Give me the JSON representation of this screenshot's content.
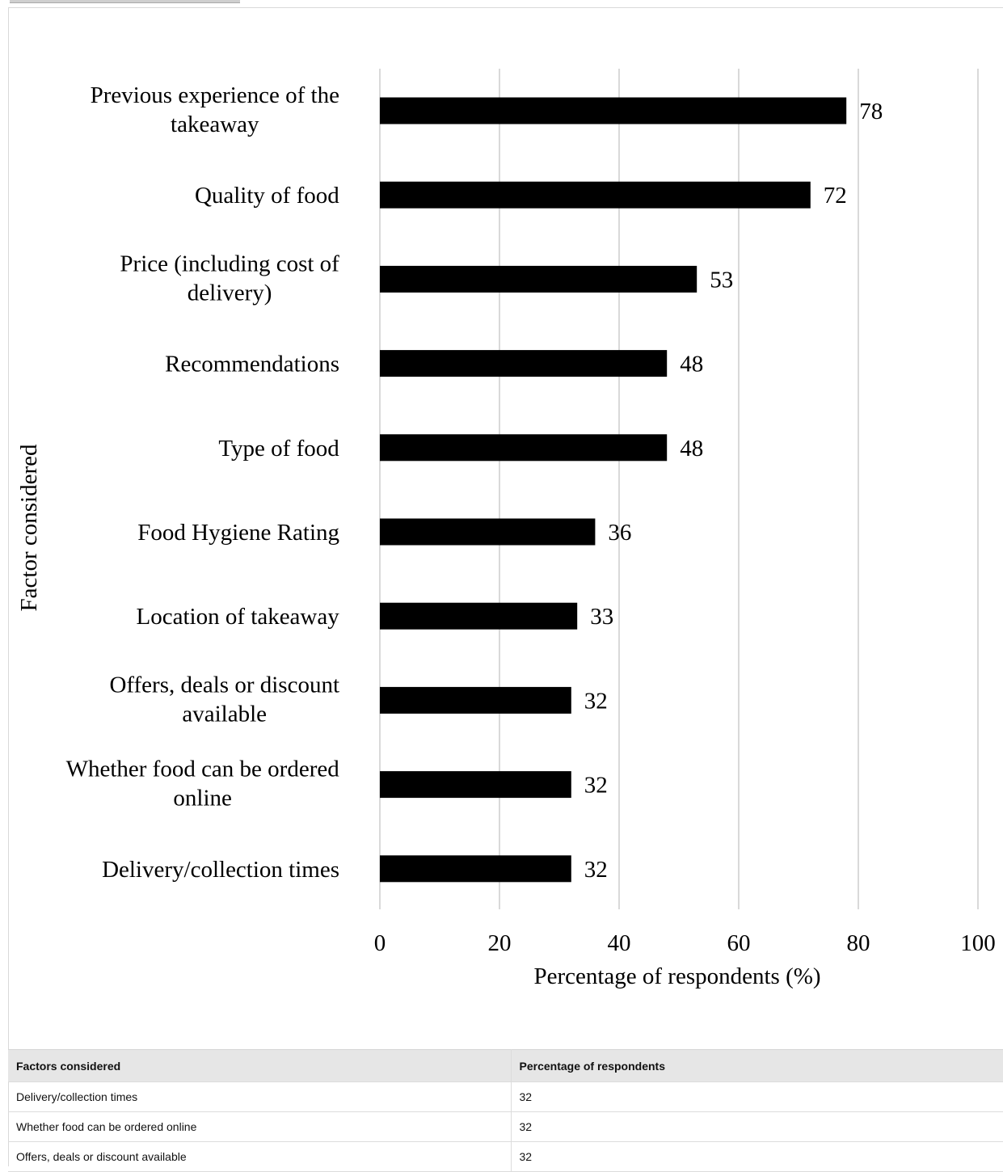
{
  "chart_data": {
    "type": "bar",
    "orientation": "horizontal",
    "categories": [
      "Previous experience of the takeaway",
      "Quality of food",
      "Price (including cost of delivery)",
      "Recommendations",
      "Type of food",
      "Food Hygiene Rating",
      "Location of takeaway",
      "Offers, deals or discount available",
      "Whether food can be ordered online",
      "Delivery/collection times"
    ],
    "category_label_lines": [
      [
        "Previous experience of the",
        "takeaway"
      ],
      [
        "Quality of food"
      ],
      [
        "Price (including cost of",
        "delivery)"
      ],
      [
        "Recommendations"
      ],
      [
        "Type of food"
      ],
      [
        "Food Hygiene Rating"
      ],
      [
        "Location of takeaway"
      ],
      [
        "Offers, deals or discount",
        "available"
      ],
      [
        "Whether food can be ordered",
        "online"
      ],
      [
        "Delivery/collection times"
      ]
    ],
    "values": [
      78,
      72,
      53,
      48,
      48,
      36,
      33,
      32,
      32,
      32
    ],
    "xlabel": "Percentage of respondents (%)",
    "ylabel": "Factor considered",
    "xlim": [
      0,
      100
    ],
    "xticks": [
      0,
      20,
      40,
      60,
      80,
      100
    ],
    "grid": true,
    "data_labels": true,
    "bar_color": "#000000",
    "grid_color": "#d9d9d9"
  },
  "table": {
    "headers": [
      "Factors considered",
      "Percentage of respondents"
    ],
    "rows": [
      [
        "Delivery/collection times",
        "32"
      ],
      [
        "Whether food can be ordered online",
        "32"
      ],
      [
        "Offers, deals or discount available",
        "32"
      ]
    ]
  }
}
